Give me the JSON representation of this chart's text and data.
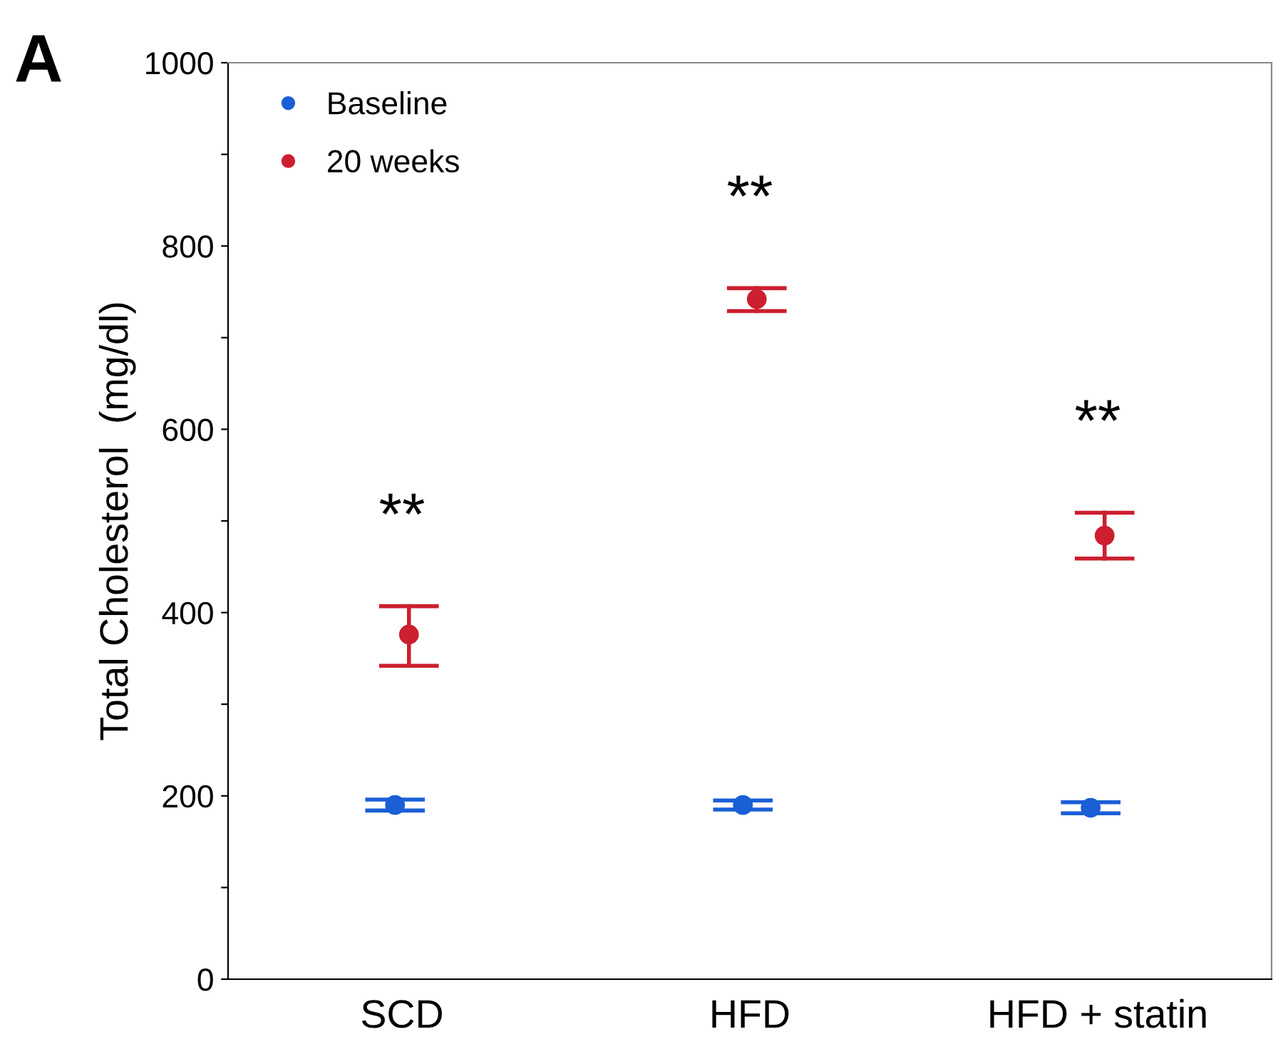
{
  "chart_data": {
    "type": "scatter",
    "ylabel": "Total Cholesterol  (mg/dl)",
    "categories": [
      "SCD",
      "HFD",
      "HFD + statin"
    ],
    "series": [
      {
        "name": "Baseline",
        "color": "#1a5fd6",
        "values": [
          190,
          190,
          187
        ],
        "errors": [
          [
            184,
            196
          ],
          [
            185,
            195
          ],
          [
            181,
            193
          ]
        ]
      },
      {
        "name": "20 weeks",
        "color": "#cc1f2f",
        "values": [
          376,
          742,
          484
        ],
        "errors": [
          [
            342,
            407
          ],
          [
            729,
            754
          ],
          [
            459,
            509
          ]
        ]
      }
    ],
    "ylim": [
      0,
      1000
    ],
    "yticks": [
      0,
      {
        "value": 100,
        "label": null
      },
      200,
      {
        "value": 300,
        "label": null
      },
      400,
      {
        "value": 500,
        "label": null
      },
      600,
      {
        "value": 700,
        "label": null
      },
      800,
      {
        "value": 900,
        "label": null
      },
      1000
    ],
    "annotations": [
      "A",
      "**",
      "**",
      "**"
    ],
    "legend": "top left",
    "grid": false,
    "marker": "circle"
  }
}
